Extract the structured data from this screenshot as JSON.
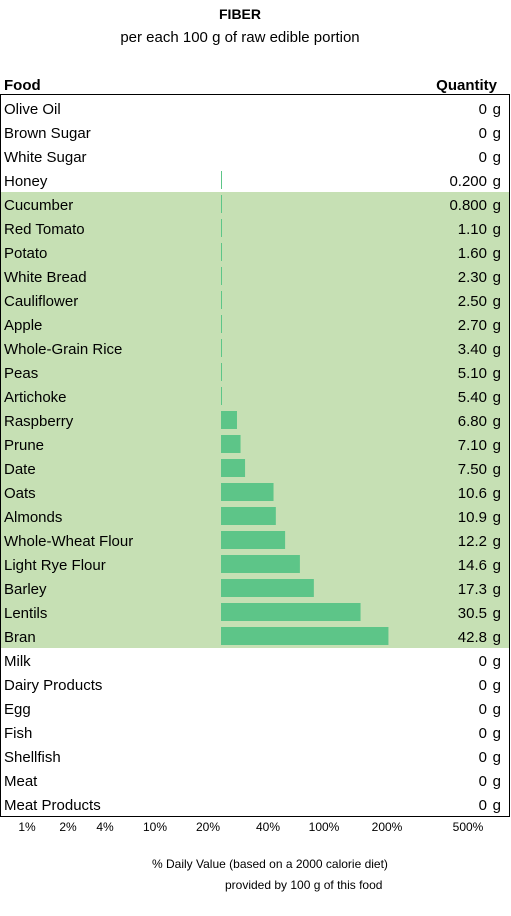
{
  "header": {
    "title": "FIBER",
    "subtitle": "per each 100 g of raw edible portion",
    "col_food": "Food",
    "col_quantity": "Quantity"
  },
  "footer": {
    "line1": "% Daily Value (based on a 2000 calorie diet)",
    "line2": "provided by 100 g of this food"
  },
  "colors": {
    "highlight": "#c6e0b4",
    "bar": "#5dc588",
    "border": "#000000"
  },
  "chart_data": {
    "type": "bar",
    "orientation": "horizontal",
    "title": "FIBER",
    "subtitle": "per each 100 g of raw edible portion",
    "xlabel": "% Daily Value (based on a 2000 calorie diet) provided by 100 g of this food",
    "x_scale": "log",
    "x_ticks": [
      "1%",
      "2%",
      "4%",
      "10%",
      "20%",
      "40%",
      "100%",
      "200%",
      "500%"
    ],
    "unit": "g",
    "bar_baseline_pct": 20,
    "bar_full_pct": 500,
    "categories": [
      "Olive Oil",
      "Brown Sugar",
      "White Sugar",
      "Honey",
      "Cucumber",
      "Red Tomato",
      "Potato",
      "White Bread",
      "Cauliflower",
      "Apple",
      "Whole-Grain Rice",
      "Peas",
      "Artichoke",
      "Raspberry",
      "Prune",
      "Date",
      "Oats",
      "Almonds",
      "Whole-Wheat Flour",
      "Light Rye Flour",
      "Barley",
      "Lentils",
      "Bran",
      "Milk",
      "Dairy Products",
      "Egg",
      "Fish",
      "Shellfish",
      "Meat",
      "Meat Products"
    ],
    "values": [
      0,
      0,
      0,
      0.2,
      0.8,
      1.1,
      1.6,
      2.3,
      2.5,
      2.7,
      3.4,
      5.1,
      5.4,
      6.8,
      7.1,
      7.5,
      10.6,
      10.9,
      12.2,
      14.6,
      17.3,
      30.5,
      42.8,
      0,
      0,
      0,
      0,
      0,
      0,
      0
    ],
    "value_labels": [
      "0",
      "0",
      "0",
      "0.200",
      "0.800",
      "1.10",
      "1.60",
      "2.30",
      "2.50",
      "2.70",
      "3.40",
      "5.10",
      "5.40",
      "6.80",
      "7.10",
      "7.50",
      "10.6",
      "10.9",
      "12.2",
      "14.6",
      "17.3",
      "30.5",
      "42.8",
      "0",
      "0",
      "0",
      "0",
      "0",
      "0",
      "0"
    ],
    "highlighted": [
      false,
      false,
      false,
      false,
      true,
      true,
      true,
      true,
      true,
      true,
      true,
      true,
      true,
      true,
      true,
      true,
      true,
      true,
      true,
      true,
      true,
      true,
      true,
      false,
      false,
      false,
      false,
      false,
      false,
      false
    ]
  }
}
